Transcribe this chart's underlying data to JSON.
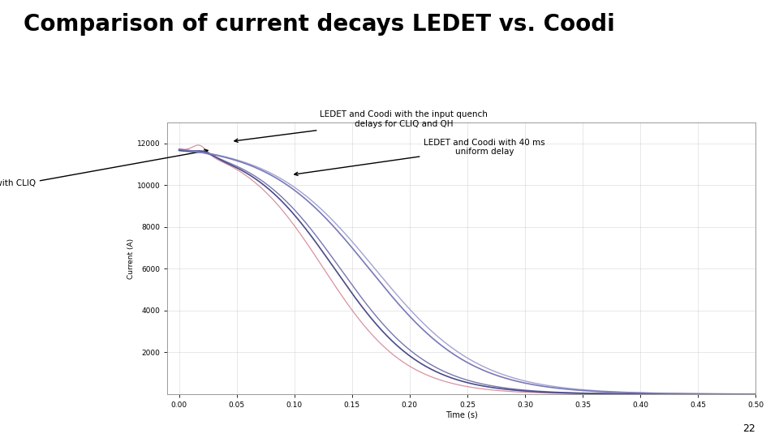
{
  "title": "Comparison of current decays LEDET vs. Coodi",
  "title_fontsize": 20,
  "title_fontweight": "bold",
  "xlabel": "Time (s)",
  "ylabel": "Current (A)",
  "xlim": [
    -0.01,
    0.5
  ],
  "ylim": [
    0,
    13000
  ],
  "yticks": [
    2000,
    4000,
    6000,
    8000,
    10000,
    12000
  ],
  "xticks": [
    0,
    0.05,
    0.1,
    0.15,
    0.2,
    0.25,
    0.3,
    0.35,
    0.4,
    0.45,
    0.5
  ],
  "ann1_text": "LEDET and Coodi with the input quench\ndelays for CLIQ and QH",
  "ann2_text": "LEDET and Coodi with 40 ms\nuniform delay",
  "ann3_text": "LEDET with CLIQ\nand QH",
  "page_number": "22",
  "bg_color": "#ffffff",
  "plot_bg_color": "#ffffff"
}
